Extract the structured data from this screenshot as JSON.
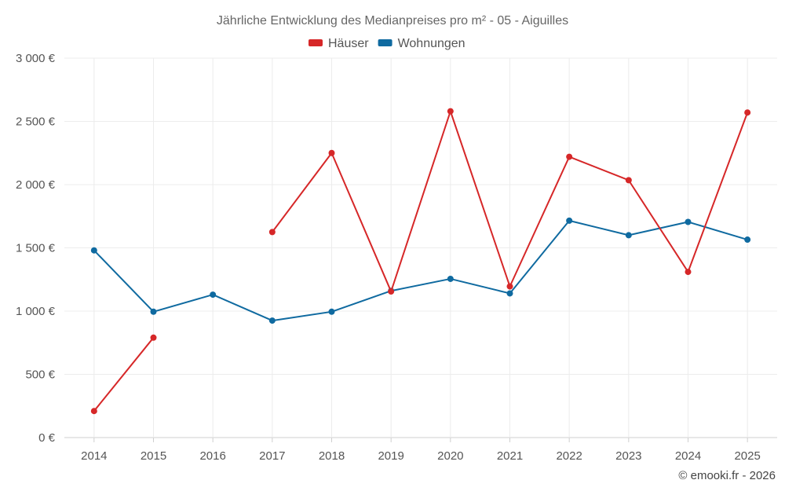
{
  "chart_data": {
    "type": "line",
    "title": "Jährliche Entwicklung des Medianpreises pro m² - 05 - Aiguilles",
    "categories": [
      "2014",
      "2015",
      "2016",
      "2017",
      "2018",
      "2019",
      "2020",
      "2021",
      "2022",
      "2023",
      "2024",
      "2025"
    ],
    "series": [
      {
        "name": "Häuser",
        "color": "#d62728",
        "values": [
          210,
          790,
          null,
          1625,
          2250,
          1155,
          2580,
          1195,
          2220,
          2035,
          1310,
          2570
        ]
      },
      {
        "name": "Wohnungen",
        "color": "#0f6aa0",
        "values": [
          1480,
          995,
          1130,
          925,
          995,
          1160,
          1255,
          1140,
          1715,
          1600,
          1705,
          1565
        ]
      }
    ],
    "ylim": [
      0,
      3000
    ],
    "yticks": [
      0,
      500,
      1000,
      1500,
      2000,
      2500,
      3000
    ],
    "ytick_labels": [
      "0 €",
      "500 €",
      "1 000 €",
      "1 500 €",
      "2 000 €",
      "2 500 €",
      "3 000 €"
    ],
    "legend_position": "top-center",
    "grid": true
  },
  "credit": "© emooki.fr - 2026"
}
